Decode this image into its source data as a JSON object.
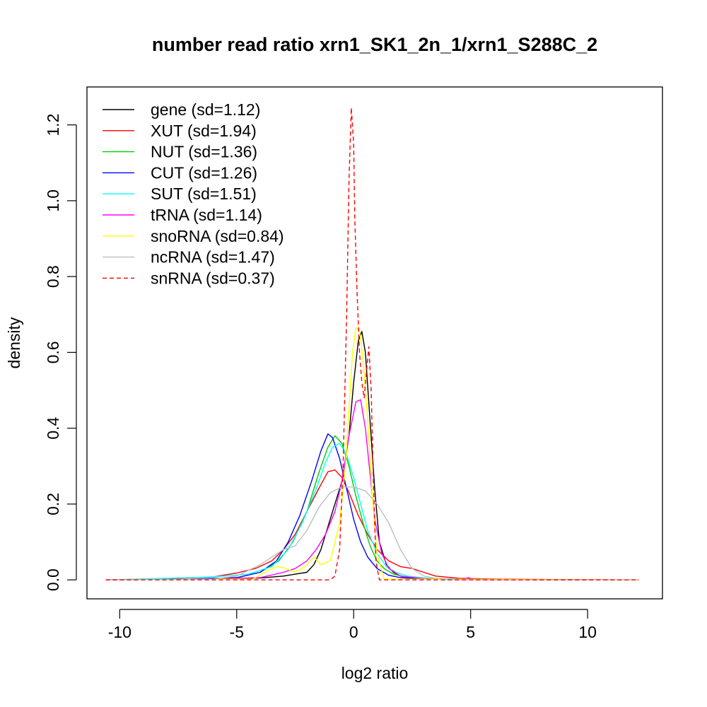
{
  "chart_data": {
    "type": "line",
    "title": "number read ratio xrn1_SK1_2n_1/xrn1_S288C_2",
    "xlabel": "log2 ratio",
    "ylabel": "density",
    "xlim": [
      -11.4,
      13.2
    ],
    "ylim": [
      -0.05,
      1.3
    ],
    "xticks": [
      -10,
      -5,
      0,
      5,
      10
    ],
    "xtick_labels": [
      "-10",
      "-5",
      "0",
      "5",
      "10"
    ],
    "yticks": [
      0.0,
      0.2,
      0.4,
      0.6,
      0.8,
      1.0,
      1.2
    ],
    "ytick_labels": [
      "0.0",
      "0.2",
      "0.4",
      "0.6",
      "0.8",
      "1.0",
      "1.2"
    ],
    "grid": false,
    "legend_position": "top-left",
    "series": [
      {
        "name": "gene (sd=1.12)",
        "color": "#000000",
        "dashed": false,
        "x": [
          -10.6,
          -6,
          -4,
          -3,
          -2.5,
          -2,
          -1.7,
          -1.4,
          -1.1,
          -0.8,
          -0.5,
          -0.2,
          0.0,
          0.2,
          0.35,
          0.5,
          0.7,
          0.9,
          1.1,
          1.4,
          1.7,
          2.0,
          2.5,
          3.5,
          5,
          8,
          12.2
        ],
        "y": [
          0,
          0.002,
          0.005,
          0.01,
          0.015,
          0.02,
          0.04,
          0.08,
          0.14,
          0.2,
          0.26,
          0.38,
          0.52,
          0.63,
          0.655,
          0.6,
          0.42,
          0.24,
          0.1,
          0.04,
          0.02,
          0.01,
          0.005,
          0.002,
          0.001,
          0,
          0
        ]
      },
      {
        "name": "XUT (sd=1.94)",
        "color": "#ff0000",
        "dashed": false,
        "x": [
          -10.6,
          -8,
          -6,
          -5,
          -4.2,
          -3.5,
          -3,
          -2.5,
          -2,
          -1.5,
          -1.1,
          -0.8,
          -0.5,
          -0.2,
          0.2,
          0.6,
          1,
          1.5,
          2,
          2.5,
          3,
          3.5,
          4.5,
          6,
          8,
          12.2
        ],
        "y": [
          0,
          0.003,
          0.008,
          0.018,
          0.03,
          0.05,
          0.08,
          0.12,
          0.18,
          0.24,
          0.285,
          0.29,
          0.27,
          0.23,
          0.17,
          0.12,
          0.08,
          0.05,
          0.035,
          0.03,
          0.02,
          0.01,
          0.004,
          0.002,
          0.001,
          0
        ]
      },
      {
        "name": "NUT (sd=1.36)",
        "color": "#00cd00",
        "dashed": false,
        "x": [
          -10.6,
          -7,
          -5,
          -4,
          -3.2,
          -2.6,
          -2,
          -1.5,
          -1.1,
          -0.8,
          -0.5,
          -0.2,
          0.1,
          0.4,
          0.7,
          1.0,
          1.3,
          1.7,
          2.2,
          3,
          4.5,
          7,
          12.2
        ],
        "y": [
          0,
          0.002,
          0.005,
          0.02,
          0.05,
          0.1,
          0.18,
          0.28,
          0.35,
          0.38,
          0.36,
          0.3,
          0.22,
          0.15,
          0.09,
          0.05,
          0.03,
          0.015,
          0.008,
          0.003,
          0.001,
          0,
          0
        ]
      },
      {
        "name": "CUT (sd=1.26)",
        "color": "#0000ff",
        "dashed": false,
        "x": [
          -10.6,
          -7,
          -5,
          -4,
          -3.3,
          -2.8,
          -2.3,
          -1.8,
          -1.4,
          -1.1,
          -0.9,
          -0.6,
          -0.3,
          0.0,
          0.3,
          0.6,
          1.0,
          1.5,
          2,
          3,
          4.5,
          7,
          12.2
        ],
        "y": [
          0,
          0.002,
          0.006,
          0.02,
          0.05,
          0.1,
          0.17,
          0.26,
          0.34,
          0.385,
          0.375,
          0.32,
          0.24,
          0.16,
          0.1,
          0.06,
          0.03,
          0.012,
          0.006,
          0.002,
          0.001,
          0,
          0
        ]
      },
      {
        "name": "SUT (sd=1.51)",
        "color": "#00ffff",
        "dashed": false,
        "x": [
          -10.6,
          -8,
          -6,
          -4.5,
          -3.5,
          -2.8,
          -2.2,
          -1.6,
          -1.2,
          -0.9,
          -0.6,
          -0.3,
          0.0,
          0.3,
          0.6,
          1.0,
          1.4,
          1.8,
          2.3,
          3,
          4.5,
          7,
          12.2
        ],
        "y": [
          0,
          0.004,
          0.008,
          0.015,
          0.035,
          0.08,
          0.15,
          0.24,
          0.31,
          0.35,
          0.36,
          0.33,
          0.27,
          0.2,
          0.13,
          0.07,
          0.035,
          0.02,
          0.01,
          0.005,
          0.002,
          0,
          0
        ]
      },
      {
        "name": "tRNA (sd=1.14)",
        "color": "#ff00ff",
        "dashed": false,
        "x": [
          -10.6,
          -6,
          -4,
          -3,
          -2.5,
          -2,
          -1.6,
          -1.2,
          -0.8,
          -0.5,
          -0.2,
          0.1,
          0.3,
          0.5,
          0.7,
          0.9,
          1.2,
          1.5,
          2,
          3,
          4.6,
          4.9,
          5.2,
          7,
          12.2
        ],
        "y": [
          0,
          0.002,
          0.006,
          0.02,
          0.03,
          0.05,
          0.08,
          0.12,
          0.18,
          0.26,
          0.38,
          0.47,
          0.475,
          0.4,
          0.28,
          0.16,
          0.07,
          0.03,
          0.01,
          0.003,
          0,
          0.006,
          0,
          0,
          0
        ]
      },
      {
        "name": "snoRNA (sd=0.84)",
        "color": "#ffff00",
        "dashed": false,
        "x": [
          -10.6,
          -4.3,
          -3.8,
          -3.5,
          -3.2,
          -2.9,
          -2.6,
          -2.3,
          -2.0,
          -1.7,
          -1.4,
          -1.0,
          -0.6,
          -0.35,
          -0.2,
          -0.05,
          0.1,
          0.25,
          0.4,
          0.6,
          0.8,
          1.0,
          1.3,
          12.2
        ],
        "y": [
          0,
          0.002,
          0.02,
          0.03,
          0.035,
          0.03,
          0.022,
          0.025,
          0.04,
          0.06,
          0.04,
          0.05,
          0.15,
          0.3,
          0.45,
          0.6,
          0.665,
          0.66,
          0.58,
          0.42,
          0.22,
          0.07,
          0.002,
          0
        ]
      },
      {
        "name": "ncRNA (sd=1.47)",
        "color": "#bebebe",
        "dashed": false,
        "x": [
          -10.6,
          -6,
          -5,
          -4,
          -3.5,
          -3,
          -2.5,
          -2,
          -1.5,
          -1,
          -0.5,
          0,
          0.5,
          1.0,
          1.5,
          2.0,
          2.5,
          3.0,
          3.5,
          4.5,
          12.2
        ],
        "y": [
          0,
          0.002,
          0.01,
          0.04,
          0.06,
          0.08,
          0.09,
          0.13,
          0.19,
          0.23,
          0.245,
          0.245,
          0.235,
          0.2,
          0.15,
          0.08,
          0.03,
          0.01,
          0.004,
          0,
          0
        ]
      },
      {
        "name": "snRNA (sd=0.37)",
        "color": "#ff0000",
        "dashed": true,
        "x": [
          -10.6,
          -1.0,
          -0.8,
          -0.6,
          -0.45,
          -0.3,
          -0.2,
          -0.1,
          0.0,
          0.05,
          0.15,
          0.25,
          0.35,
          0.45,
          0.55,
          0.65,
          0.75,
          0.85,
          0.95,
          1.1,
          12.2
        ],
        "y": [
          0,
          0,
          0.01,
          0.08,
          0.3,
          0.7,
          1.05,
          1.245,
          1.15,
          0.95,
          0.75,
          0.6,
          0.52,
          0.48,
          0.55,
          0.615,
          0.5,
          0.25,
          0.05,
          0,
          0
        ]
      }
    ]
  }
}
